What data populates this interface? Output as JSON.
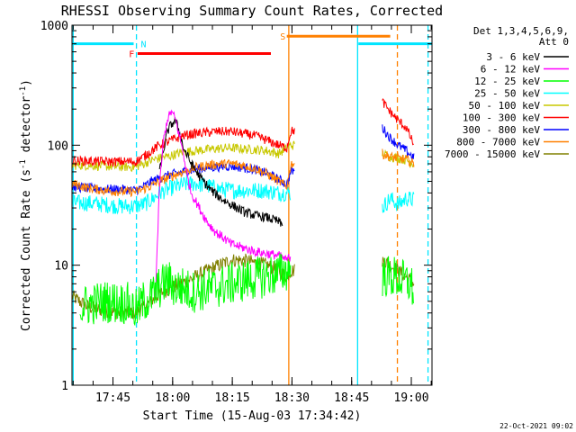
{
  "chart_data": {
    "type": "line",
    "title": "RHESSI Observing Summary Count Rates, Corrected",
    "xlabel": "Start Time (15-Aug-03 17:34:42)",
    "ylabel_main": "Corrected Count Rate (s",
    "ylabel_sup1": "-1",
    "ylabel_mid": " detector",
    "ylabel_sup2": "-1",
    "ylabel_end": ")",
    "yscale": "log",
    "ylim": [
      1,
      1000
    ],
    "y_ticks": [
      {
        "v": 1,
        "label": "1"
      },
      {
        "v": 10,
        "label": "10"
      },
      {
        "v": 100,
        "label": "100"
      },
      {
        "v": 1000,
        "label": "1000"
      }
    ],
    "xlim_min": [
      0,
      90.5
    ],
    "x_ticks": [
      {
        "t": 10.3,
        "label": "17:45"
      },
      {
        "t": 25.3,
        "label": "18:00"
      },
      {
        "t": 40.3,
        "label": "18:15"
      },
      {
        "t": 55.3,
        "label": "18:30"
      },
      {
        "t": 70.3,
        "label": "18:45"
      },
      {
        "t": 85.3,
        "label": "19:00"
      }
    ],
    "timestamp": "22-Oct-2021 09:02",
    "legend_header": [
      "Det 1,3,4,5,6,9,",
      "Att 0"
    ],
    "series": [
      {
        "name": "3 - 6 keV",
        "color": "#000000",
        "x": [
          22,
          23,
          24,
          25,
          26,
          27,
          28,
          30,
          32,
          35,
          38,
          40,
          43,
          46,
          49,
          52,
          53
        ],
        "values": [
          60,
          90,
          130,
          150,
          160,
          130,
          95,
          70,
          55,
          42,
          35,
          32,
          28,
          26,
          25,
          23,
          21
        ],
        "gaps": [
          54,
          78
        ]
      },
      {
        "name": "6 - 12 keV",
        "color": "#ff00ff",
        "x": [
          21,
          22,
          23,
          24,
          25,
          26,
          27,
          28,
          29,
          30,
          32,
          34,
          36,
          38,
          40,
          43,
          46,
          49,
          52,
          54,
          55
        ],
        "values": [
          6,
          45,
          110,
          165,
          190,
          165,
          120,
          85,
          55,
          40,
          30,
          23,
          19,
          17,
          15,
          14,
          13,
          12.5,
          12,
          11,
          12
        ],
        "gaps": [
          55,
          78
        ]
      },
      {
        "name": "12 - 25 keV",
        "color": "#00ff00",
        "x": [
          2,
          8,
          14,
          16,
          17,
          18,
          19,
          20,
          21,
          22,
          24,
          26,
          28,
          30,
          33,
          36,
          40,
          44,
          48,
          52,
          54,
          55,
          81,
          85,
          86
        ],
        "values": [
          4.5,
          5,
          4.8,
          4.2,
          4.5,
          5,
          5.2,
          5.5,
          6,
          6.5,
          7.5,
          6.5,
          6.5,
          6,
          6.2,
          6.5,
          7,
          7.5,
          8,
          8.5,
          9,
          9.5,
          8,
          7,
          6
        ],
        "gaps": [
          55,
          78
        ]
      },
      {
        "name": "25 - 50 keV",
        "color": "#00ffff",
        "x": [
          0,
          4,
          8,
          12,
          16,
          18,
          20,
          22,
          25,
          28,
          31,
          34,
          37,
          40,
          44,
          48,
          52,
          55,
          78,
          80,
          82,
          84,
          86
        ],
        "values": [
          33,
          33,
          32,
          31,
          31,
          32,
          35,
          40,
          44,
          47,
          48,
          46,
          43,
          42,
          42,
          42,
          40,
          40,
          30,
          36,
          32,
          36,
          35
        ],
        "gaps": [
          55,
          78
        ]
      },
      {
        "name": "50 - 100 keV",
        "color": "#c8c800",
        "x": [
          0,
          4,
          8,
          12,
          16,
          18,
          20,
          22,
          25,
          28,
          31,
          34,
          37,
          40,
          43,
          46,
          49,
          52,
          55,
          78,
          80,
          82,
          84,
          86
        ],
        "values": [
          68,
          68,
          67,
          66,
          66,
          70,
          75,
          78,
          82,
          88,
          90,
          92,
          94,
          95,
          93,
          92,
          90,
          85,
          100,
          85,
          80,
          78,
          75,
          70
        ],
        "gaps": [
          56,
          78
        ]
      },
      {
        "name": "100 - 300 keV",
        "color": "#ff0000",
        "x": [
          0,
          4,
          8,
          12,
          16,
          18,
          20,
          22,
          25,
          28,
          31,
          34,
          37,
          40,
          43,
          46,
          49,
          52,
          54,
          55,
          78,
          80,
          82,
          84,
          86
        ],
        "values": [
          74,
          74,
          73,
          73,
          73,
          80,
          90,
          100,
          110,
          120,
          125,
          128,
          130,
          130,
          125,
          120,
          110,
          100,
          95,
          130,
          230,
          190,
          160,
          140,
          100
        ],
        "gaps": [
          56,
          78
        ]
      },
      {
        "name": "300 - 800 keV",
        "color": "#0000ff",
        "x": [
          0,
          4,
          8,
          12,
          16,
          18,
          20,
          22,
          25,
          28,
          31,
          34,
          37,
          40,
          43,
          46,
          49,
          52,
          54,
          55,
          78,
          80,
          82,
          84,
          86
        ],
        "values": [
          45,
          44,
          43,
          43,
          42,
          45,
          50,
          53,
          57,
          60,
          63,
          65,
          66,
          67,
          65,
          63,
          58,
          52,
          47,
          60,
          140,
          115,
          100,
          90,
          78
        ],
        "gaps": [
          56,
          78
        ]
      },
      {
        "name": "800 - 7000 keV",
        "color": "#ff8000",
        "x": [
          0,
          4,
          8,
          12,
          16,
          18,
          20,
          22,
          25,
          28,
          31,
          34,
          37,
          40,
          43,
          46,
          49,
          52,
          54,
          55,
          78,
          80,
          82,
          84,
          86
        ],
        "values": [
          48,
          44,
          42,
          41,
          41,
          43,
          46,
          50,
          55,
          60,
          65,
          68,
          70,
          70,
          68,
          64,
          58,
          50,
          45,
          70,
          85,
          80,
          78,
          76,
          70
        ],
        "gaps": [
          56,
          78
        ]
      },
      {
        "name": "7000 - 15000 keV",
        "color": "#808000",
        "x": [
          0,
          4,
          8,
          12,
          16,
          18,
          20,
          22,
          25,
          28,
          31,
          34,
          37,
          40,
          43,
          46,
          49,
          52,
          54,
          55,
          78,
          80,
          82,
          84,
          86
        ],
        "values": [
          5.5,
          4.5,
          4.2,
          4,
          4,
          4.5,
          5,
          5.8,
          6.5,
          7.2,
          8,
          9,
          10,
          11,
          11,
          10.5,
          10,
          9,
          8,
          9,
          11,
          10,
          9,
          8,
          7
        ],
        "gaps": [
          56,
          78
        ]
      }
    ],
    "flag_bars": [
      {
        "label": "N",
        "color": "#00e5ff",
        "t0": 0,
        "t1": 15.5,
        "y": 700,
        "label_t": 18,
        "label_color": "#00e5ff"
      },
      {
        "label": "",
        "color": "#00e5ff",
        "t0": 72,
        "t1": 90.5,
        "y": 700,
        "label_t": 0,
        "label_color": "#00e5ff"
      },
      {
        "label": "F",
        "color": "#ff0000",
        "t0": 16.5,
        "t1": 50,
        "y": 580,
        "label_t": 15,
        "label_color": "#ff0000"
      },
      {
        "label": "S",
        "color": "#ff8000",
        "t0": 54,
        "t1": 80,
        "y": 810,
        "label_t": 53,
        "label_color": "#ff8000"
      }
    ],
    "vlines": [
      {
        "t": 0.3,
        "color": "#00e5ff",
        "dash": false
      },
      {
        "t": 16.2,
        "color": "#00e5ff",
        "dash": true
      },
      {
        "t": 54.5,
        "color": "#ff8000",
        "dash": false
      },
      {
        "t": 71.8,
        "color": "#00e5ff",
        "dash": false
      },
      {
        "t": 81.8,
        "color": "#ff8000",
        "dash": true
      },
      {
        "t": 89.5,
        "color": "#00e5ff",
        "dash": true
      }
    ]
  }
}
